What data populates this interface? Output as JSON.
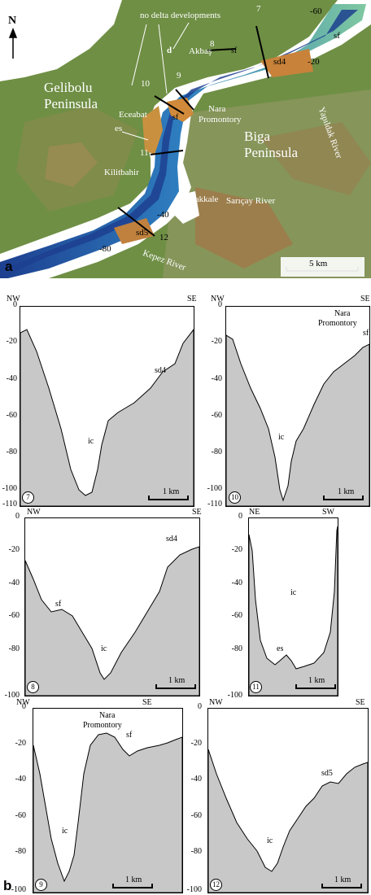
{
  "figure": {
    "panel_a_letter": "a",
    "panel_b_letter": "b"
  },
  "map": {
    "north_label": "N",
    "labels": {
      "no_delta": "no delta developments",
      "gelibolu": "Gelibolu",
      "peninsula1": "Peninsula",
      "biga": "Biga",
      "peninsula2": "Peninsula",
      "akbas": "Akbaş",
      "nara": "Nara",
      "promontory": "Promontory",
      "eceabat": "Eceabat",
      "es": "es",
      "kilitbahir": "Kilitbahir",
      "canakkale": "Çanakkale",
      "saricay": "Sarıçay River",
      "yapildak": "Yapıldak River",
      "kepez": "Kepez River",
      "sf1": "sf",
      "sf2": "sf",
      "sf3": "sf",
      "sd4": "sd4",
      "sd5": "sd5",
      "d": "d",
      "c60": "-60",
      "c20": "-20",
      "c40": "-40",
      "c80": "-80",
      "n7": "7",
      "n8": "8",
      "n9": "9",
      "n10": "10",
      "n11": "11",
      "n12": "12"
    },
    "scale_label": "5 km",
    "colors": {
      "land_green": "#6f8f45",
      "land_brown": "#9b7443",
      "water": "#ffffff",
      "deep": "#1d3f8f"
    }
  },
  "profiles": [
    {
      "id": "7",
      "left": "NW",
      "right": "SE",
      "ticks": [
        "0",
        "-20",
        "-40",
        "-60",
        "-80",
        "-100"
      ],
      "extra_tick": "-110",
      "scale": "1 km",
      "labels": {
        "ic": "ic",
        "sd4": "sd4"
      }
    },
    {
      "id": "10",
      "left": "NW",
      "right": "SE",
      "ticks": [
        "0",
        "-20",
        "-40",
        "-60",
        "-80",
        "-100"
      ],
      "extra_tick": "-110",
      "scale": "1 km",
      "labels": {
        "ic": "ic",
        "nara": "Nara",
        "prom": "Promontory",
        "sf": "sf"
      }
    },
    {
      "id": "8",
      "left": "NW",
      "right": "SE",
      "ticks": [
        "0",
        "-20",
        "-40",
        "-60",
        "-80",
        "-100"
      ],
      "scale": "1 km",
      "labels": {
        "ic": "ic",
        "sf": "sf",
        "sd4": "sd4"
      }
    },
    {
      "id": "11",
      "left": "NE",
      "right": "SW",
      "ticks": [
        "0",
        "-20",
        "-40",
        "-60",
        "-80",
        "-100"
      ],
      "scale": "1 km",
      "labels": {
        "ic": "ic",
        "es": "es"
      }
    },
    {
      "id": "9",
      "left": "NW",
      "right": "SE",
      "ticks": [
        "0",
        "-20",
        "-40",
        "-60",
        "-80",
        "-100"
      ],
      "scale": "1 km",
      "labels": {
        "ic": "ic",
        "nara": "Nara",
        "prom": "Promontory",
        "sf": "sf"
      }
    },
    {
      "id": "12",
      "left": "NW",
      "right": "SE",
      "ticks": [
        "0",
        "-20",
        "-40",
        "-60",
        "-80",
        "-100"
      ],
      "scale": "1 km",
      "labels": {
        "ic": "ic",
        "sd5": "sd5"
      }
    }
  ]
}
